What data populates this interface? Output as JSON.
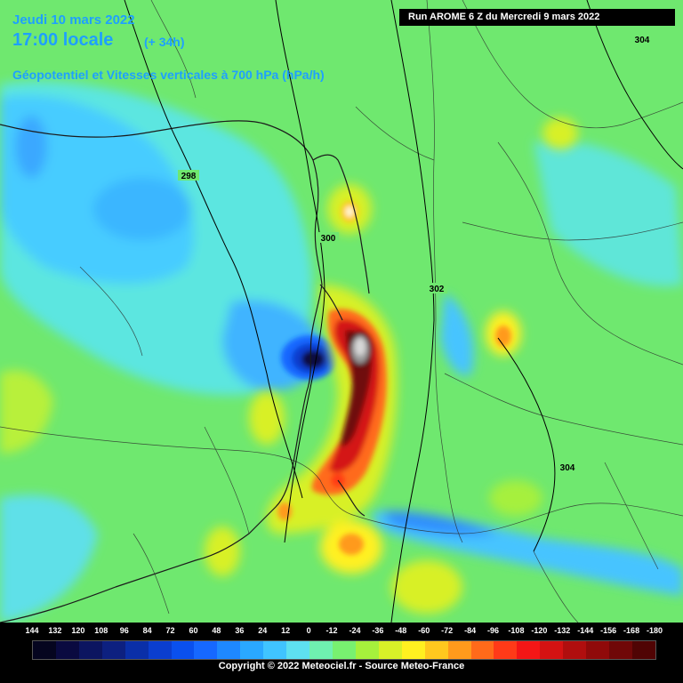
{
  "header": {
    "date": "Jeudi 10 mars 2022",
    "time": "17:00 locale",
    "lead": "(+ 34h)",
    "parameter": "Géopotentiel et Vitesses verticales à 700 hPa (hPa/h)",
    "run": "Run AROME 6 Z du Mercredi 9 mars 2022"
  },
  "isolines": [
    "298",
    "300",
    "302",
    "304",
    "304"
  ],
  "legend": {
    "ticks": [
      "144",
      "132",
      "120",
      "108",
      "96",
      "84",
      "72",
      "60",
      "48",
      "36",
      "24",
      "12",
      "0",
      "-12",
      "-24",
      "-36",
      "-48",
      "-60",
      "-72",
      "-84",
      "-96",
      "-108",
      "-120",
      "-132",
      "-144",
      "-156",
      "-168",
      "-180"
    ],
    "colors": [
      "#05051f",
      "#0a0a40",
      "#0c1560",
      "#0d2080",
      "#0a2fa8",
      "#0b3ecf",
      "#0a50ee",
      "#1668ff",
      "#1e88ff",
      "#2aa8ff",
      "#40c4ff",
      "#5ee0f0",
      "#6ff0b0",
      "#78f070",
      "#a6f03c",
      "#d8f028",
      "#fff020",
      "#ffc81e",
      "#ff9a1c",
      "#ff6a1a",
      "#ff3a18",
      "#f41616",
      "#d41212",
      "#b00e0e",
      "#900a0a",
      "#700808",
      "#500404"
    ]
  },
  "copyright": "Copyright © 2022 Meteociel.fr - Source Meteo-France"
}
